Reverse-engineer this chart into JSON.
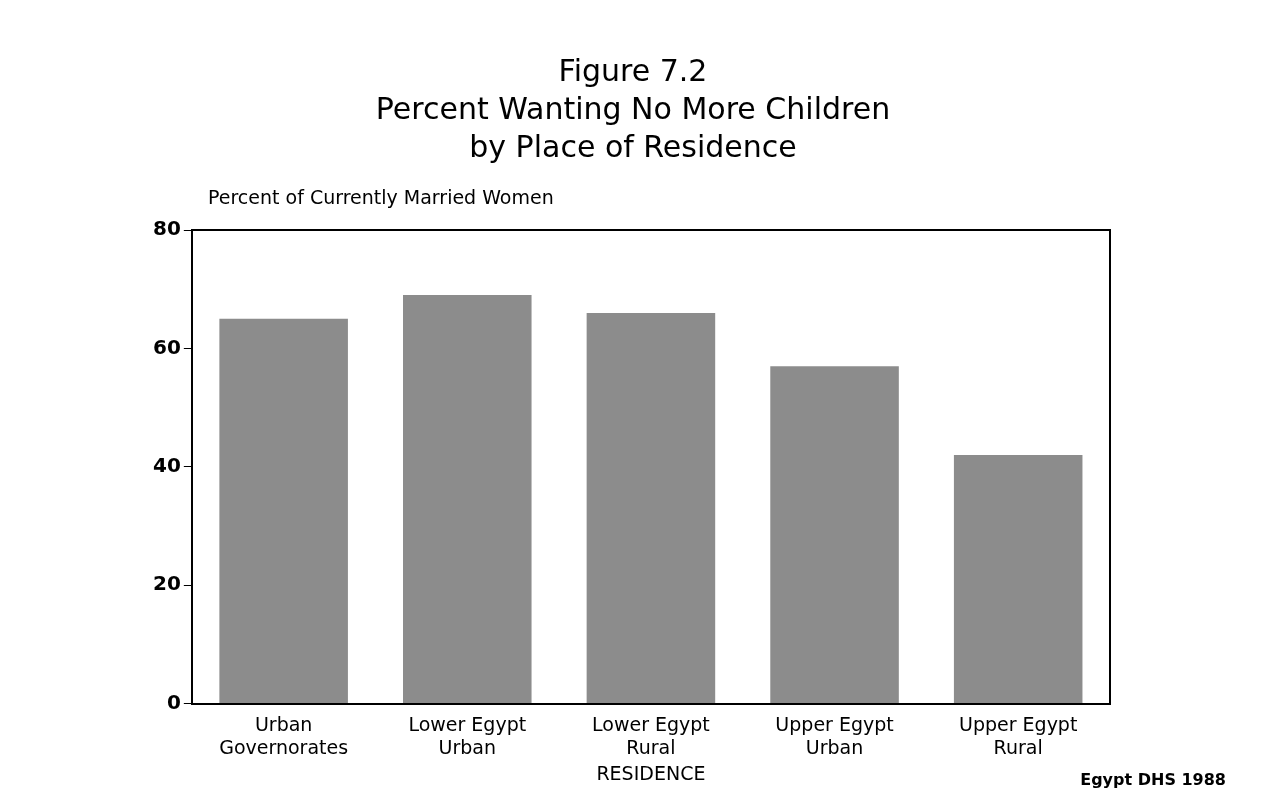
{
  "chart_data": {
    "type": "bar",
    "title": "Figure 7.2\nPercent Wanting No More Children\nby Place of Residence",
    "ylabel": "Percent of Currently Married Women",
    "xlabel": "RESIDENCE",
    "categories": [
      "Urban\nGovernorates",
      "Lower Egypt\nUrban",
      "Lower Egypt\nRural",
      "Upper Egypt\nUrban",
      "Upper Egypt\nRural"
    ],
    "values": [
      65,
      69,
      66,
      57,
      42
    ],
    "color": "#8c8c8c",
    "ylim": [
      0,
      80
    ],
    "yticks": [
      0,
      20,
      40,
      60,
      80
    ],
    "grid": false,
    "legend": false,
    "annotations": [
      "Egypt DHS 1988"
    ]
  }
}
